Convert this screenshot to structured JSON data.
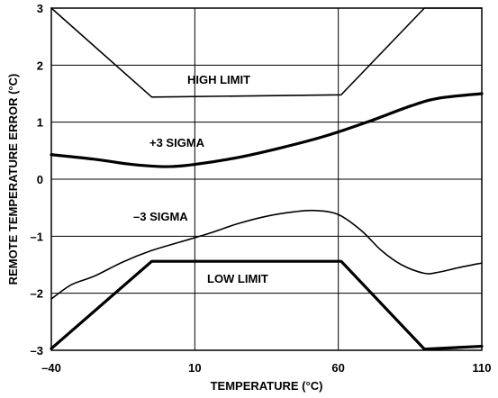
{
  "chart_data": {
    "type": "line",
    "xlabel": "TEMPERATURE (°C)",
    "ylabel": "REMOTE TEMPERATURE ERROR (°C)",
    "xlim": [
      -40,
      110
    ],
    "ylim": [
      -3,
      3
    ],
    "x_ticks": [
      -40,
      10,
      60,
      110
    ],
    "x_tick_labels": [
      "–40",
      "10",
      "60",
      "110"
    ],
    "y_ticks": [
      3,
      2,
      1,
      0,
      -1,
      -2,
      -3
    ],
    "y_tick_labels": [
      "3",
      "2",
      "1",
      "0",
      "–1",
      "–2",
      "–3"
    ],
    "grid": "major",
    "series": [
      {
        "name": "HIGH LIMIT",
        "weight": "thin",
        "points": [
          [
            -40,
            3.0
          ],
          [
            -5,
            1.44
          ],
          [
            61,
            1.48
          ],
          [
            90,
            3.0
          ],
          [
            110,
            3.0
          ]
        ]
      },
      {
        "name": "+3 SIGMA",
        "weight": "thick",
        "points": [
          [
            -40,
            0.43
          ],
          [
            -25,
            0.35
          ],
          [
            -12,
            0.26
          ],
          [
            0,
            0.22
          ],
          [
            10,
            0.26
          ],
          [
            25,
            0.38
          ],
          [
            40,
            0.55
          ],
          [
            55,
            0.75
          ],
          [
            70,
            1.0
          ],
          [
            85,
            1.28
          ],
          [
            95,
            1.42
          ],
          [
            110,
            1.5
          ]
        ]
      },
      {
        "name": "–3 SIGMA",
        "weight": "thin",
        "points": [
          [
            -40,
            -2.1
          ],
          [
            -33,
            -1.85
          ],
          [
            -25,
            -1.7
          ],
          [
            -15,
            -1.45
          ],
          [
            -5,
            -1.25
          ],
          [
            5,
            -1.1
          ],
          [
            15,
            -0.95
          ],
          [
            25,
            -0.78
          ],
          [
            35,
            -0.65
          ],
          [
            45,
            -0.57
          ],
          [
            52,
            -0.55
          ],
          [
            60,
            -0.62
          ],
          [
            68,
            -0.9
          ],
          [
            75,
            -1.25
          ],
          [
            82,
            -1.5
          ],
          [
            90,
            -1.65
          ],
          [
            95,
            -1.63
          ],
          [
            102,
            -1.55
          ],
          [
            110,
            -1.47
          ]
        ]
      },
      {
        "name": "LOW LIMIT",
        "weight": "thick",
        "points": [
          [
            -40,
            -2.97
          ],
          [
            -5,
            -1.44
          ],
          [
            61,
            -1.44
          ],
          [
            90,
            -2.98
          ],
          [
            110,
            -2.93
          ]
        ]
      }
    ],
    "annotations": {
      "high_limit": "HIGH LIMIT",
      "plus_sigma": "+3 SIGMA",
      "minus_sigma": "–3 SIGMA",
      "low_limit": "LOW LIMIT"
    }
  }
}
